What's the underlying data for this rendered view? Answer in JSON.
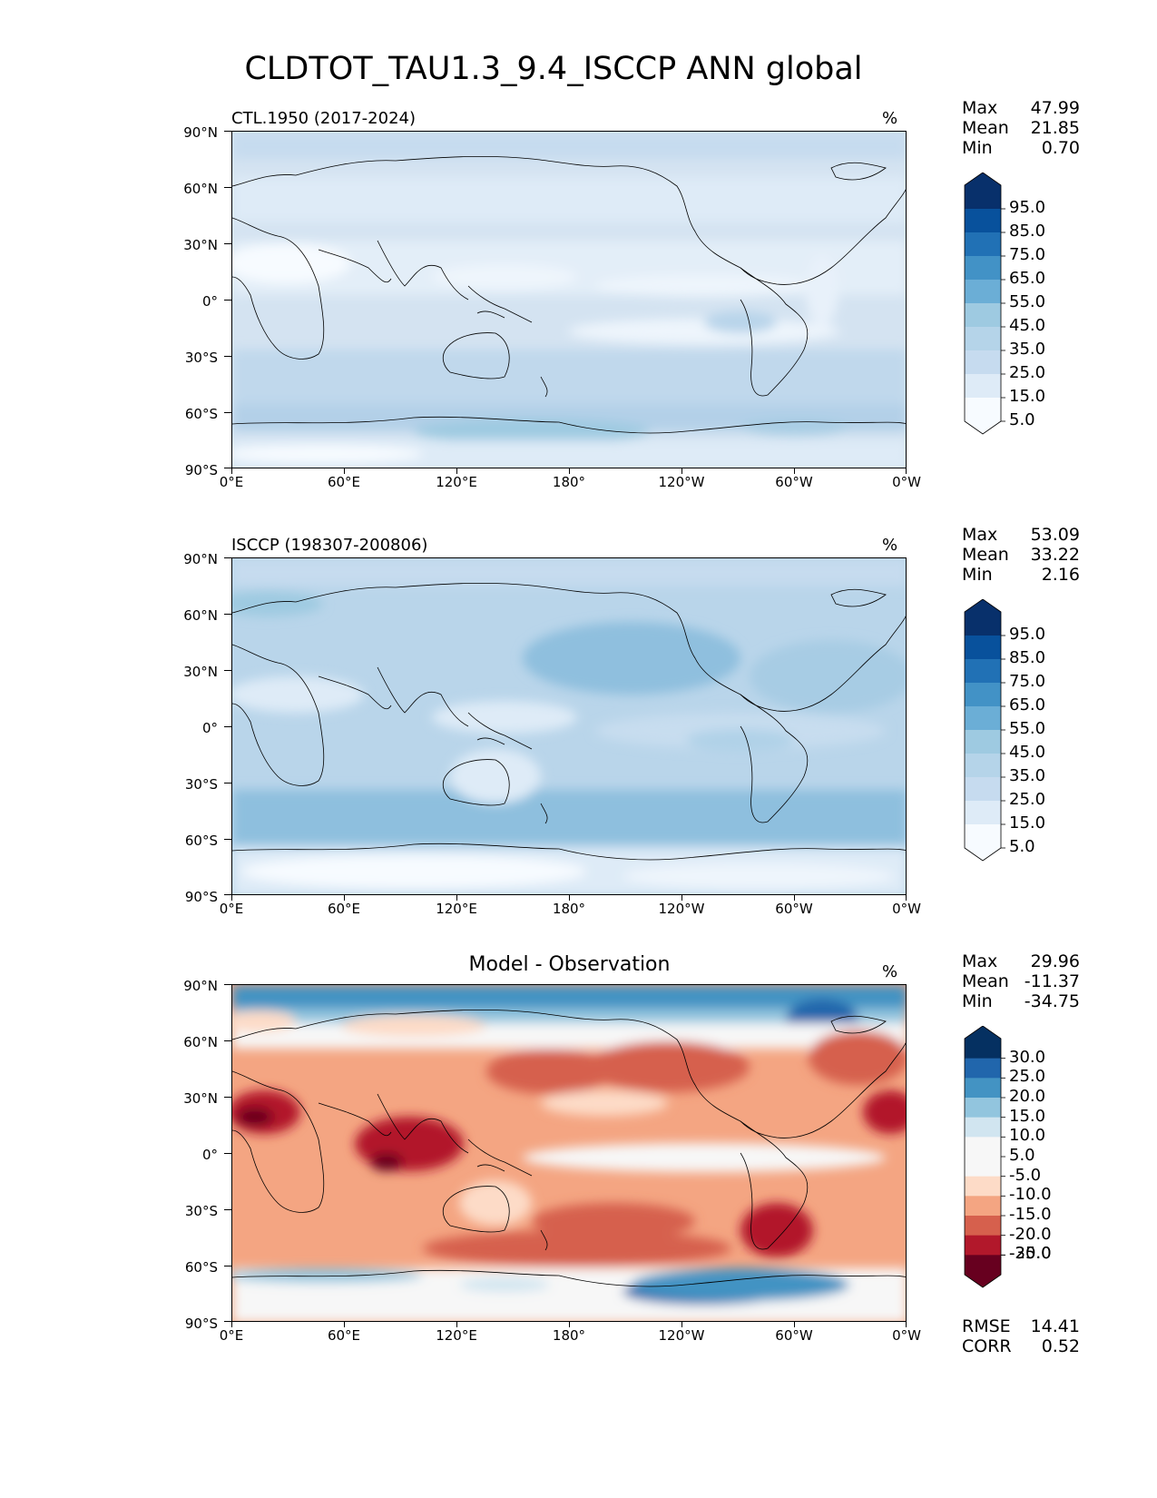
{
  "title": "CLDTOT_TAU1.3_9.4_ISCCP ANN global",
  "panels": [
    {
      "title_left": "CTL.1950 (2017-2024)",
      "unit": "%",
      "stats": {
        "max_label": "Max",
        "max": "47.99",
        "mean_label": "Mean",
        "mean": "21.85",
        "min_label": "Min",
        "min": "0.70"
      },
      "colorbar_labels": [
        "95.0",
        "85.0",
        "75.0",
        "65.0",
        "55.0",
        "45.0",
        "35.0",
        "25.0",
        "15.0",
        "5.0"
      ],
      "colors": [
        "#08306b",
        "#08519c",
        "#2171b5",
        "#4292c6",
        "#6baed6",
        "#9ecae1",
        "#b5d4e9",
        "#c6dbef",
        "#deebf7",
        "#f7fbff"
      ]
    },
    {
      "title_left": "ISCCP (198307-200806)",
      "unit": "%",
      "stats": {
        "max_label": "Max",
        "max": "53.09",
        "mean_label": "Mean",
        "mean": "33.22",
        "min_label": "Min",
        "min": "2.16"
      },
      "colorbar_labels": [
        "95.0",
        "85.0",
        "75.0",
        "65.0",
        "55.0",
        "45.0",
        "35.0",
        "25.0",
        "15.0",
        "5.0"
      ],
      "colors": [
        "#08306b",
        "#08519c",
        "#2171b5",
        "#4292c6",
        "#6baed6",
        "#9ecae1",
        "#b5d4e9",
        "#c6dbef",
        "#deebf7",
        "#f7fbff"
      ]
    },
    {
      "title_center": "Model - Observation",
      "unit": "%",
      "stats": {
        "max_label": "Max",
        "max": "29.96",
        "mean_label": "Mean",
        "mean": "-11.37",
        "min_label": "Min",
        "min": "-34.75"
      },
      "colorbar_labels": [
        "30.0",
        "25.0",
        "20.0",
        "15.0",
        "10.0",
        "5.0",
        "-5.0",
        "-10.0",
        "-15.0",
        "-20.0",
        "-25.0",
        "-30.0"
      ],
      "colors": [
        "#053061",
        "#2166ac",
        "#4393c3",
        "#92c5de",
        "#d1e5f0",
        "#f7f7f7",
        "#f7f7f7",
        "#fddbc7",
        "#f4a582",
        "#d6604d",
        "#b2182b",
        "#67001f"
      ],
      "rmse_label": "RMSE",
      "rmse": "14.41",
      "corr_label": "CORR",
      "corr": "0.52"
    }
  ],
  "axes": {
    "lat_ticks": [
      "90°N",
      "60°N",
      "30°N",
      "0°",
      "30°S",
      "60°S",
      "90°S"
    ],
    "lon_ticks": [
      "0°E",
      "60°E",
      "120°E",
      "180°",
      "120°W",
      "60°W",
      "0°W"
    ]
  },
  "chart_data": [
    {
      "type": "heatmap",
      "title": "CTL.1950 (2017-2024)",
      "units": "%",
      "x": "longitude 0–360",
      "y": "latitude -90–90",
      "zonal_mean_approx": [
        {
          "lat": 80,
          "value": 20
        },
        {
          "lat": 60,
          "value": 22
        },
        {
          "lat": 30,
          "value": 20
        },
        {
          "lat": 15,
          "value": 12
        },
        {
          "lat": 0,
          "value": 22
        },
        {
          "lat": -15,
          "value": 18
        },
        {
          "lat": -30,
          "value": 25
        },
        {
          "lat": -50,
          "value": 30
        },
        {
          "lat": -65,
          "value": 32
        },
        {
          "lat": -80,
          "value": 15
        }
      ],
      "levels": [
        5,
        15,
        25,
        35,
        45,
        55,
        65,
        75,
        85,
        95
      ]
    },
    {
      "type": "heatmap",
      "title": "ISCCP (198307-200806)",
      "units": "%",
      "x": "longitude 0–360",
      "y": "latitude -90–90",
      "zonal_mean_approx": [
        {
          "lat": 80,
          "value": 25
        },
        {
          "lat": 60,
          "value": 33
        },
        {
          "lat": 45,
          "value": 40
        },
        {
          "lat": 30,
          "value": 30
        },
        {
          "lat": 0,
          "value": 35
        },
        {
          "lat": -30,
          "value": 35
        },
        {
          "lat": -50,
          "value": 42
        },
        {
          "lat": -65,
          "value": 30
        },
        {
          "lat": -80,
          "value": 10
        }
      ],
      "levels": [
        5,
        15,
        25,
        35,
        45,
        55,
        65,
        75,
        85,
        95
      ]
    },
    {
      "type": "heatmap",
      "title": "Model - Observation",
      "units": "%",
      "x": "longitude 0–360",
      "y": "latitude -90–90",
      "zonal_mean_approx": [
        {
          "lat": 80,
          "value": 12
        },
        {
          "lat": 60,
          "value": -5
        },
        {
          "lat": 45,
          "value": -15
        },
        {
          "lat": 20,
          "value": -12
        },
        {
          "lat": 0,
          "value": -10
        },
        {
          "lat": -20,
          "value": -12
        },
        {
          "lat": -45,
          "value": -18
        },
        {
          "lat": -65,
          "value": 5
        },
        {
          "lat": -75,
          "value": 12
        }
      ],
      "levels": [
        -30,
        -25,
        -20,
        -15,
        -10,
        -5,
        5,
        10,
        15,
        20,
        25,
        30
      ]
    }
  ]
}
